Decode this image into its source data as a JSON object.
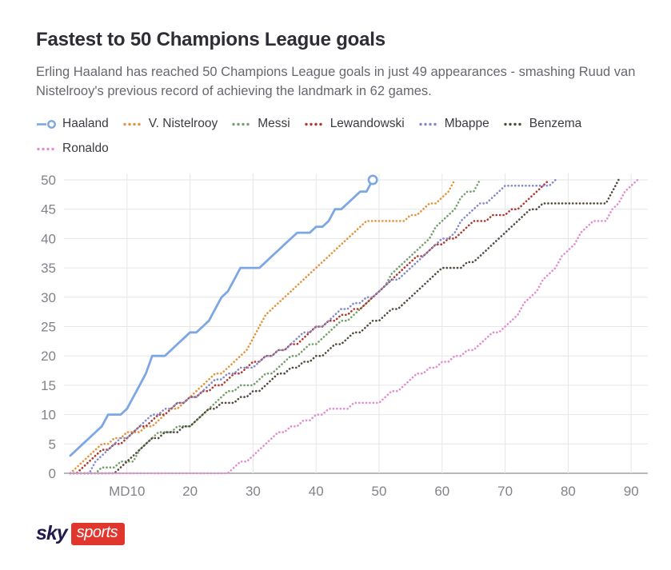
{
  "header": {
    "title": "Fastest to 50 Champions League goals",
    "subtitle": "Erling Haaland has reached 50 Champions League goals in just 49 appearances - smashing Ruud van Nistelrooy's previous record of achieving the landmark in 62 games."
  },
  "footer": {
    "brand_sky": "sky",
    "brand_sports": "sports",
    "brand_red": "#e0362d",
    "brand_navy": "#241a4f"
  },
  "chart_data": {
    "type": "line",
    "title": "Fastest to 50 Champions League goals",
    "xlabel": "",
    "ylabel": "",
    "x_unit": "appearance number (matchday)",
    "y_unit": "cumulative Champions League goals",
    "xlim": [
      0,
      92
    ],
    "ylim": [
      0,
      50
    ],
    "grid": true,
    "legend_position": "top",
    "yticks": [
      0,
      5,
      10,
      15,
      20,
      25,
      30,
      35,
      40,
      45,
      50
    ],
    "xticks": [
      {
        "md": 10,
        "label": "MD10"
      },
      {
        "md": 20,
        "label": "20"
      },
      {
        "md": 30,
        "label": "30"
      },
      {
        "md": 40,
        "label": "40"
      },
      {
        "md": 50,
        "label": "50"
      },
      {
        "md": 60,
        "label": "60"
      },
      {
        "md": 70,
        "label": "70"
      },
      {
        "md": 80,
        "label": "80"
      },
      {
        "md": 90,
        "label": "90"
      }
    ],
    "series": [
      {
        "name": "Haaland",
        "color": "#7da7e3",
        "style": "solid",
        "end_marker": "open-circle",
        "goals_reached_50_in": 49,
        "values": [
          3,
          4,
          5,
          6,
          7,
          8,
          10,
          10,
          10,
          11,
          13,
          15,
          17,
          20,
          20,
          20,
          21,
          22,
          23,
          24,
          24,
          25,
          26,
          28,
          30,
          31,
          33,
          35,
          35,
          35,
          35,
          36,
          37,
          38,
          39,
          40,
          41,
          41,
          41,
          42,
          42,
          43,
          45,
          45,
          46,
          47,
          48,
          48,
          50
        ]
      },
      {
        "name": "V. Nistelrooy",
        "color": "#e2953c",
        "style": "dotted",
        "end_marker": "none",
        "goals_reached_50_in": 62,
        "values": [
          0,
          1,
          2,
          3,
          4,
          5,
          5,
          6,
          6,
          7,
          7,
          7,
          8,
          8,
          9,
          10,
          11,
          11,
          12,
          13,
          14,
          15,
          16,
          17,
          17,
          18,
          19,
          20,
          21,
          23,
          25,
          27,
          28,
          29,
          30,
          31,
          32,
          33,
          34,
          35,
          36,
          37,
          38,
          39,
          40,
          41,
          42,
          43,
          43,
          43,
          43,
          43,
          43,
          43,
          44,
          44,
          45,
          46,
          46,
          47,
          48,
          50
        ]
      },
      {
        "name": "Messi",
        "color": "#74a06c",
        "style": "dotted",
        "end_marker": "none",
        "goals_reached_50_in": 66,
        "values": [
          0,
          0,
          0,
          0,
          0,
          1,
          1,
          1,
          2,
          2,
          2,
          4,
          5,
          6,
          7,
          7,
          7,
          8,
          8,
          8,
          9,
          10,
          11,
          12,
          13,
          14,
          14,
          15,
          15,
          15,
          16,
          17,
          17,
          18,
          19,
          20,
          20,
          21,
          22,
          22,
          23,
          24,
          25,
          26,
          26,
          27,
          28,
          29,
          30,
          31,
          32,
          34,
          35,
          36,
          37,
          38,
          39,
          40,
          42,
          43,
          44,
          45,
          47,
          48,
          48,
          50
        ]
      },
      {
        "name": "Lewandowski",
        "color": "#b2362d",
        "style": "dotted",
        "end_marker": "none",
        "goals_reached_50_in": 77,
        "values": [
          0,
          0,
          1,
          2,
          3,
          4,
          4,
          5,
          5,
          6,
          7,
          8,
          8,
          9,
          10,
          10,
          11,
          12,
          12,
          13,
          13,
          14,
          14,
          15,
          15,
          16,
          17,
          17,
          18,
          19,
          19,
          20,
          20,
          21,
          21,
          22,
          22,
          23,
          24,
          25,
          25,
          26,
          26,
          27,
          27,
          28,
          28,
          29,
          30,
          31,
          32,
          33,
          34,
          35,
          36,
          37,
          37,
          38,
          39,
          39,
          40,
          40,
          41,
          42,
          43,
          43,
          43,
          44,
          44,
          44,
          45,
          45,
          46,
          47,
          48,
          49,
          50
        ]
      },
      {
        "name": "Mbappe",
        "color": "#8388c9",
        "style": "dotted",
        "end_marker": "none",
        "goals_reached_50_in": 78,
        "values": [
          0,
          0,
          0,
          0,
          2,
          3,
          4,
          5,
          6,
          6,
          7,
          8,
          9,
          10,
          10,
          11,
          11,
          12,
          12,
          13,
          13,
          14,
          15,
          16,
          16,
          17,
          17,
          18,
          18,
          18,
          19,
          20,
          20,
          21,
          21,
          22,
          23,
          24,
          24,
          25,
          25,
          26,
          27,
          28,
          28,
          29,
          29,
          30,
          30,
          31,
          32,
          33,
          33,
          34,
          35,
          36,
          37,
          38,
          39,
          40,
          40,
          41,
          43,
          44,
          45,
          46,
          46,
          47,
          48,
          49,
          49,
          49,
          49,
          49,
          49,
          49,
          49,
          50
        ]
      },
      {
        "name": "Benzema",
        "color": "#534a3e",
        "style": "dotted",
        "end_marker": "none",
        "goals_reached_50_in": 88,
        "values": [
          0,
          0,
          0,
          0,
          0,
          0,
          0,
          0,
          1,
          2,
          3,
          4,
          5,
          6,
          6,
          7,
          7,
          7,
          8,
          8,
          9,
          10,
          11,
          11,
          12,
          12,
          12,
          13,
          13,
          14,
          14,
          15,
          16,
          17,
          17,
          18,
          18,
          19,
          19,
          20,
          20,
          21,
          22,
          22,
          23,
          24,
          24,
          25,
          26,
          26,
          27,
          28,
          28,
          29,
          30,
          31,
          32,
          33,
          34,
          35,
          35,
          35,
          35,
          36,
          36,
          37,
          38,
          39,
          40,
          41,
          42,
          43,
          44,
          45,
          45,
          46,
          46,
          46,
          46,
          46,
          46,
          46,
          46,
          46,
          46,
          46,
          48,
          50
        ]
      },
      {
        "name": "Ronaldo",
        "color": "#e08fd1",
        "style": "dotted",
        "end_marker": "none",
        "goals_reached_50_in": 91,
        "values": [
          0,
          0,
          0,
          0,
          0,
          0,
          0,
          0,
          0,
          0,
          0,
          0,
          0,
          0,
          0,
          0,
          0,
          0,
          0,
          0,
          0,
          0,
          0,
          0,
          0,
          0,
          1,
          2,
          2,
          3,
          4,
          5,
          6,
          7,
          7,
          8,
          8,
          9,
          9,
          10,
          10,
          11,
          11,
          11,
          11,
          12,
          12,
          12,
          12,
          12,
          13,
          14,
          14,
          15,
          16,
          17,
          17,
          18,
          18,
          19,
          19,
          20,
          20,
          21,
          21,
          22,
          23,
          24,
          24,
          25,
          26,
          27,
          29,
          30,
          31,
          33,
          34,
          35,
          37,
          38,
          39,
          41,
          42,
          43,
          43,
          43,
          45,
          46,
          48,
          49,
          50
        ]
      }
    ]
  }
}
